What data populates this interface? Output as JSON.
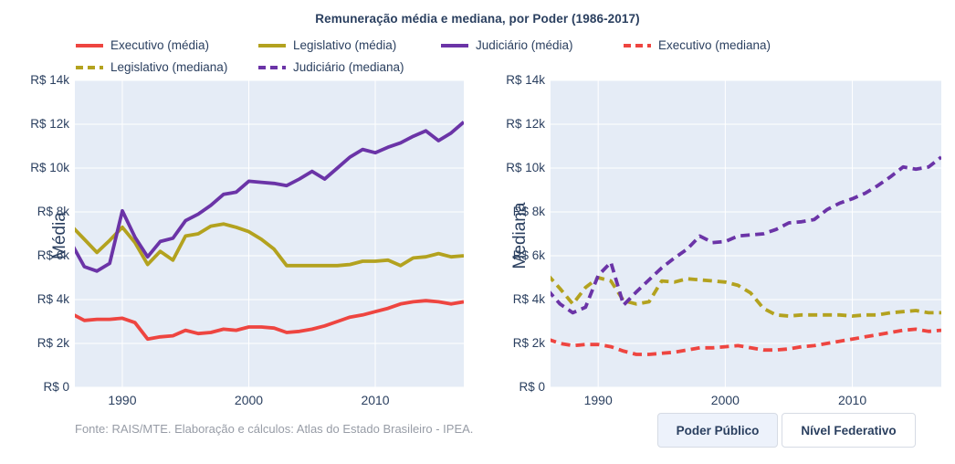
{
  "title": "Remuneração média e mediana, por Poder (1986-2017)",
  "colors": {
    "executivo": "#ee4540",
    "legislativo": "#b3a21f",
    "judiciario": "#6b34a7",
    "plot_background": "#e5ecf6",
    "gridline": "#ffffff",
    "text": "#2a3f5f",
    "muted_text": "#979ca6",
    "button_active_bg": "#edf2fb",
    "button_border": "#d6dbe4"
  },
  "legend": {
    "items": [
      {
        "label": "Executivo (média)",
        "color": "#ee4540",
        "dash": "solid"
      },
      {
        "label": "Legislativo (média)",
        "color": "#b3a21f",
        "dash": "solid"
      },
      {
        "label": "Judiciário (média)",
        "color": "#6b34a7",
        "dash": "solid"
      },
      {
        "label": "Executivo (mediana)",
        "color": "#ee4540",
        "dash": "dash"
      },
      {
        "label": "Legislativo (mediana)",
        "color": "#b3a21f",
        "dash": "dash"
      },
      {
        "label": "Judiciário (mediana)",
        "color": "#6b34a7",
        "dash": "dash"
      }
    ]
  },
  "chart_data": [
    {
      "type": "line",
      "id": "media",
      "ylabel": "Média",
      "xlim": [
        1986.25,
        2017
      ],
      "ylim": [
        0,
        14000
      ],
      "grid": true,
      "x": [
        1986,
        1987,
        1988,
        1989,
        1990,
        1991,
        1992,
        1993,
        1994,
        1995,
        1996,
        1997,
        1998,
        1999,
        2000,
        2001,
        2002,
        2003,
        2004,
        2005,
        2006,
        2007,
        2008,
        2009,
        2010,
        2011,
        2012,
        2013,
        2014,
        2015,
        2016,
        2017
      ],
      "xticks": [
        {
          "value": 1990,
          "label": "1990"
        },
        {
          "value": 2000,
          "label": "2000"
        },
        {
          "value": 2010,
          "label": "2010"
        }
      ],
      "yticks": [
        {
          "value": 0,
          "label": "R$ 0"
        },
        {
          "value": 2000,
          "label": "R$ 2k"
        },
        {
          "value": 4000,
          "label": "R$ 4k"
        },
        {
          "value": 6000,
          "label": "R$ 6k"
        },
        {
          "value": 8000,
          "label": "R$ 8k"
        },
        {
          "value": 10000,
          "label": "R$ 10k"
        },
        {
          "value": 12000,
          "label": "R$ 12k"
        },
        {
          "value": 14000,
          "label": "R$ 14k"
        }
      ],
      "series": [
        {
          "name": "Executivo (média)",
          "color": "#ee4540",
          "dash": "solid",
          "values": [
            3350,
            3050,
            3100,
            3100,
            3150,
            2950,
            2200,
            2300,
            2350,
            2600,
            2450,
            2500,
            2650,
            2600,
            2750,
            2750,
            2700,
            2500,
            2550,
            2650,
            2800,
            3000,
            3200,
            3300,
            3450,
            3600,
            3800,
            3900,
            3950,
            3900,
            3800,
            3900
          ]
        },
        {
          "name": "Legislativo (média)",
          "color": "#b3a21f",
          "dash": "solid",
          "values": [
            7350,
            6750,
            6150,
            6700,
            7300,
            6600,
            5600,
            6200,
            5800,
            6900,
            7000,
            7350,
            7450,
            7300,
            7100,
            6750,
            6300,
            5550,
            5550,
            5550,
            5550,
            5550,
            5600,
            5750,
            5750,
            5800,
            5550,
            5900,
            5950,
            6100,
            5950,
            6000
          ]
        },
        {
          "name": "Judiciário (média)",
          "color": "#6b34a7",
          "dash": "solid",
          "values": [
            6550,
            5500,
            5300,
            5650,
            8050,
            6850,
            5950,
            6650,
            6800,
            7600,
            7900,
            8300,
            8800,
            8900,
            9400,
            9350,
            9300,
            9200,
            9500,
            9850,
            9500,
            10000,
            10500,
            10850,
            10700,
            10950,
            11150,
            11450,
            11700,
            11250,
            11600,
            12100
          ]
        }
      ]
    },
    {
      "type": "line",
      "id": "mediana",
      "ylabel": "Mediana",
      "xlim": [
        1986.25,
        2017
      ],
      "ylim": [
        0,
        14000
      ],
      "grid": true,
      "x": [
        1986,
        1987,
        1988,
        1989,
        1990,
        1991,
        1992,
        1993,
        1994,
        1995,
        1996,
        1997,
        1998,
        1999,
        2000,
        2001,
        2002,
        2003,
        2004,
        2005,
        2006,
        2007,
        2008,
        2009,
        2010,
        2011,
        2012,
        2013,
        2014,
        2015,
        2016,
        2017
      ],
      "xticks": [
        {
          "value": 1990,
          "label": "1990"
        },
        {
          "value": 2000,
          "label": "2000"
        },
        {
          "value": 2010,
          "label": "2010"
        }
      ],
      "yticks": [
        {
          "value": 0,
          "label": "R$ 0"
        },
        {
          "value": 2000,
          "label": "R$ 2k"
        },
        {
          "value": 4000,
          "label": "R$ 4k"
        },
        {
          "value": 6000,
          "label": "R$ 6k"
        },
        {
          "value": 8000,
          "label": "R$ 8k"
        },
        {
          "value": 10000,
          "label": "R$ 10k"
        },
        {
          "value": 12000,
          "label": "R$ 12k"
        },
        {
          "value": 14000,
          "label": "R$ 14k"
        }
      ],
      "series": [
        {
          "name": "Executivo (mediana)",
          "color": "#ee4540",
          "dash": "dash",
          "values": [
            2200,
            2000,
            1900,
            1950,
            1950,
            1850,
            1650,
            1500,
            1500,
            1550,
            1600,
            1700,
            1800,
            1800,
            1850,
            1900,
            1800,
            1700,
            1700,
            1750,
            1850,
            1900,
            2000,
            2100,
            2200,
            2300,
            2400,
            2500,
            2600,
            2650,
            2550,
            2600
          ]
        },
        {
          "name": "Legislativo (mediana)",
          "color": "#b3a21f",
          "dash": "dash",
          "values": [
            5150,
            4500,
            3800,
            4550,
            5000,
            4850,
            3950,
            3800,
            3900,
            4850,
            4800,
            4950,
            4900,
            4850,
            4800,
            4650,
            4300,
            3600,
            3300,
            3250,
            3300,
            3300,
            3300,
            3300,
            3250,
            3300,
            3300,
            3400,
            3450,
            3500,
            3400,
            3400
          ]
        },
        {
          "name": "Judiciário (mediana)",
          "color": "#6b34a7",
          "dash": "dash",
          "values": [
            4450,
            3800,
            3400,
            3650,
            5100,
            5700,
            3750,
            4350,
            4900,
            5450,
            5900,
            6300,
            6900,
            6600,
            6650,
            6900,
            6950,
            7000,
            7200,
            7500,
            7550,
            7650,
            8100,
            8400,
            8600,
            8850,
            9200,
            9600,
            10050,
            9950,
            10050,
            10500
          ]
        }
      ]
    }
  ],
  "footer": {
    "source": "Fonte: RAIS/MTE. Elaboração e cálculos: Atlas do Estado Brasileiro - IPEA.",
    "buttons": [
      {
        "label": "Poder Público",
        "active": true
      },
      {
        "label": "Nível Federativo",
        "active": false
      }
    ]
  }
}
